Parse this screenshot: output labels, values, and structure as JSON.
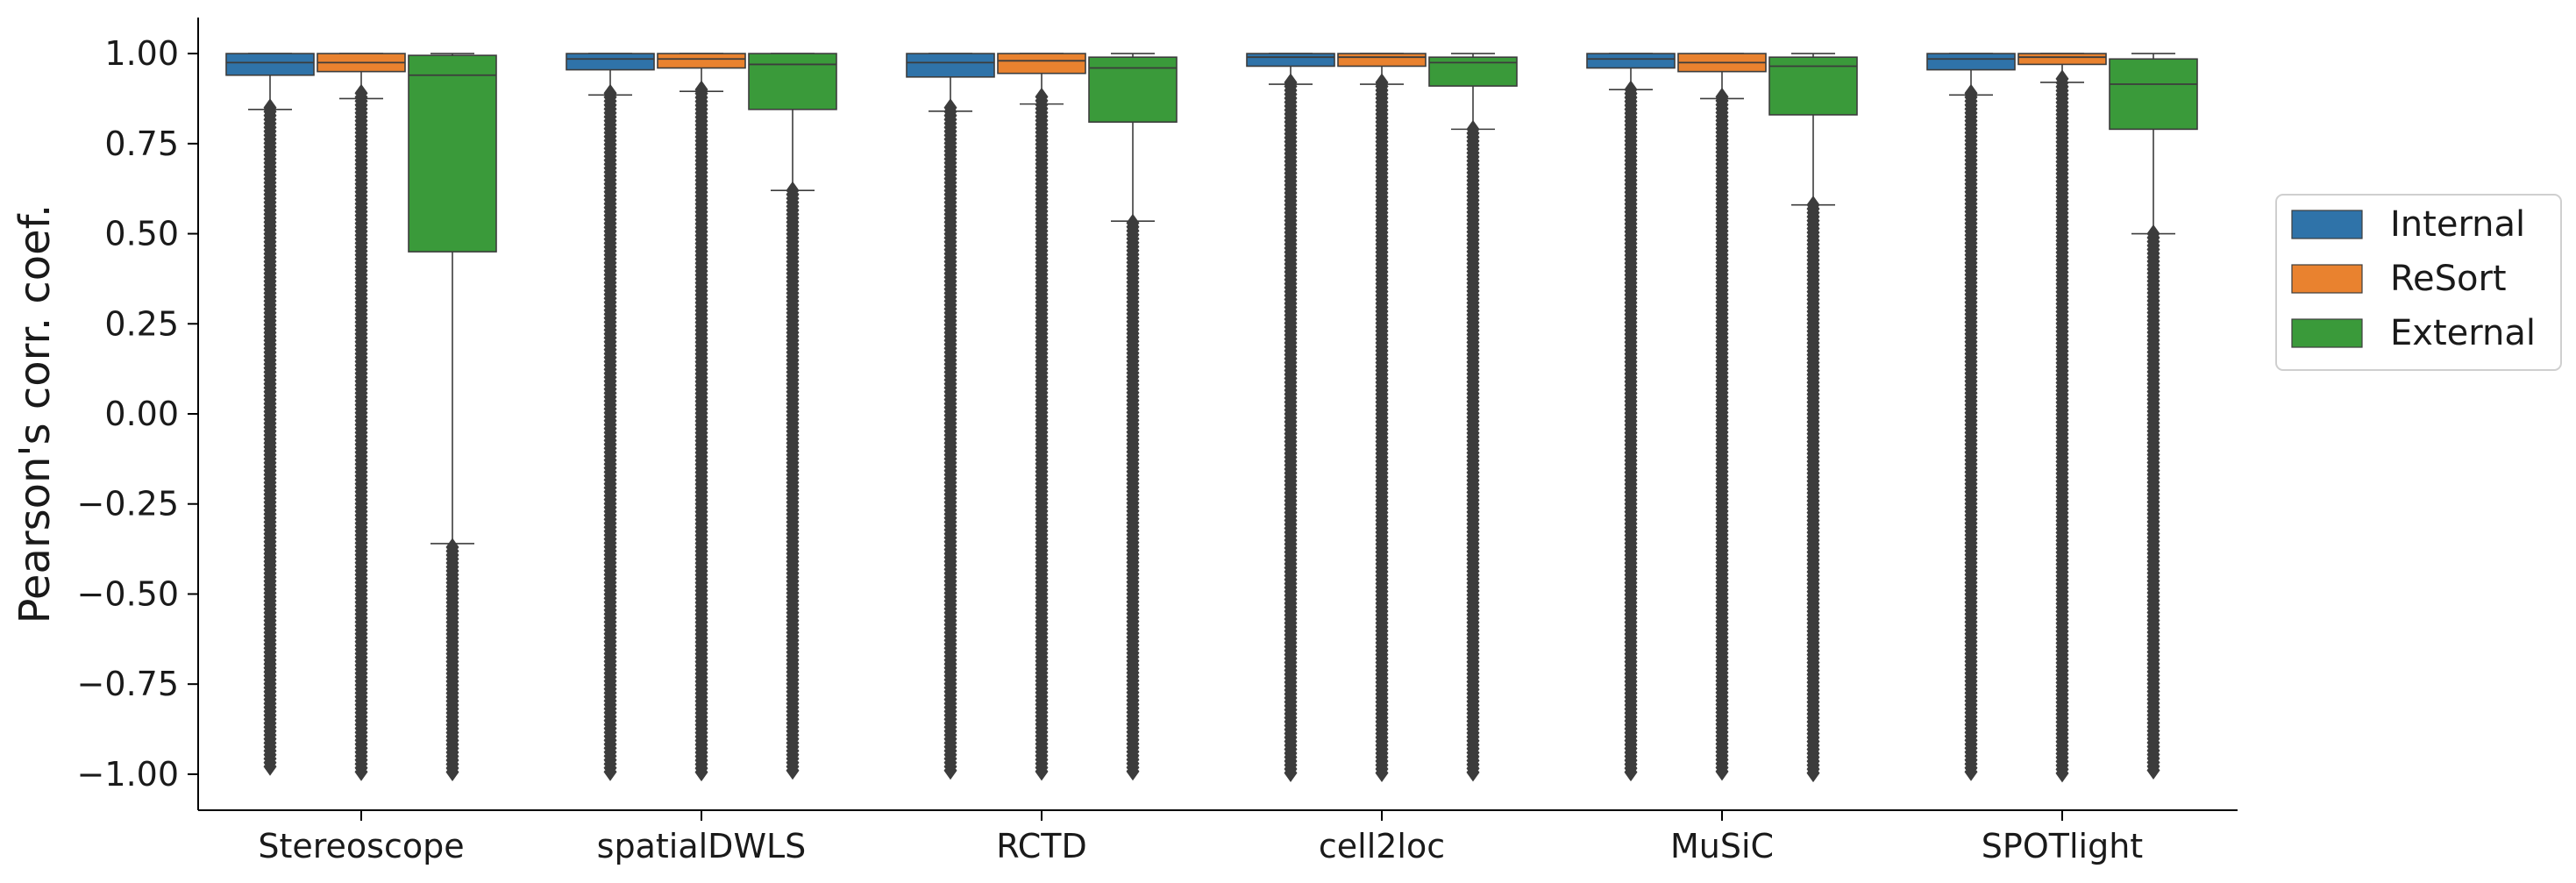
{
  "chart_data": {
    "type": "box",
    "ylabel": "Pearson's corr. coef.",
    "xlabel": "",
    "ylim": [
      -1.1,
      1.1
    ],
    "yticks": [
      1.0,
      0.75,
      0.5,
      0.25,
      0.0,
      -0.25,
      -0.5,
      -0.75,
      -1.0
    ],
    "ytick_labels": [
      "1.00",
      "0.75",
      "0.50",
      "0.25",
      "0.00",
      "−0.25",
      "−0.50",
      "−0.75",
      "−1.00"
    ],
    "categories": [
      "Stereoscope",
      "spatialDWLS",
      "RCTD",
      "cell2loc",
      "MuSiC",
      "SPOTlight"
    ],
    "legend_position": "right",
    "outlier_marker": "diamond",
    "series": [
      {
        "name": "Internal",
        "color": "#2f73a9",
        "boxes": [
          {
            "q1": 0.94,
            "median": 0.975,
            "q3": 1.0,
            "whisker_low": 0.845,
            "whisker_high": 1.0,
            "outliers_min": -0.98,
            "outliers_max": 0.85
          },
          {
            "q1": 0.955,
            "median": 0.985,
            "q3": 1.0,
            "whisker_low": 0.885,
            "whisker_high": 1.0,
            "outliers_min": -1.0,
            "outliers_max": 0.89
          },
          {
            "q1": 0.935,
            "median": 0.975,
            "q3": 1.0,
            "whisker_low": 0.84,
            "whisker_high": 1.0,
            "outliers_min": -1.0,
            "outliers_max": 0.85
          },
          {
            "q1": 0.965,
            "median": 0.99,
            "q3": 1.0,
            "whisker_low": 0.915,
            "whisker_high": 1.0,
            "outliers_min": -1.0,
            "outliers_max": 0.92
          },
          {
            "q1": 0.96,
            "median": 0.985,
            "q3": 1.0,
            "whisker_low": 0.9,
            "whisker_high": 1.0,
            "outliers_min": -1.0,
            "outliers_max": 0.9
          },
          {
            "q1": 0.955,
            "median": 0.985,
            "q3": 1.0,
            "whisker_low": 0.885,
            "whisker_high": 1.0,
            "outliers_min": -1.0,
            "outliers_max": 0.89
          }
        ]
      },
      {
        "name": "ReSort",
        "color": "#e9822f",
        "boxes": [
          {
            "q1": 0.95,
            "median": 0.975,
            "q3": 1.0,
            "whisker_low": 0.875,
            "whisker_high": 1.0,
            "outliers_min": -1.0,
            "outliers_max": 0.89
          },
          {
            "q1": 0.96,
            "median": 0.985,
            "q3": 1.0,
            "whisker_low": 0.895,
            "whisker_high": 1.0,
            "outliers_min": -1.0,
            "outliers_max": 0.9
          },
          {
            "q1": 0.945,
            "median": 0.98,
            "q3": 1.0,
            "whisker_low": 0.86,
            "whisker_high": 1.0,
            "outliers_min": -1.0,
            "outliers_max": 0.88
          },
          {
            "q1": 0.965,
            "median": 0.99,
            "q3": 1.0,
            "whisker_low": 0.915,
            "whisker_high": 1.0,
            "outliers_min": -1.0,
            "outliers_max": 0.92
          },
          {
            "q1": 0.95,
            "median": 0.975,
            "q3": 1.0,
            "whisker_low": 0.875,
            "whisker_high": 1.0,
            "outliers_min": -1.0,
            "outliers_max": 0.88
          },
          {
            "q1": 0.97,
            "median": 0.99,
            "q3": 1.0,
            "whisker_low": 0.92,
            "whisker_high": 1.0,
            "outliers_min": -1.0,
            "outliers_max": 0.93
          }
        ]
      },
      {
        "name": "External",
        "color": "#3a9a3a",
        "boxes": [
          {
            "q1": 0.45,
            "median": 0.94,
            "q3": 0.995,
            "whisker_low": -0.36,
            "whisker_high": 1.0,
            "outliers_min": -1.0,
            "outliers_max": -0.37
          },
          {
            "q1": 0.845,
            "median": 0.97,
            "q3": 1.0,
            "whisker_low": 0.62,
            "whisker_high": 1.0,
            "outliers_min": -1.0,
            "outliers_max": 0.62
          },
          {
            "q1": 0.81,
            "median": 0.96,
            "q3": 0.99,
            "whisker_low": 0.535,
            "whisker_high": 1.0,
            "outliers_min": -1.0,
            "outliers_max": 0.53
          },
          {
            "q1": 0.91,
            "median": 0.975,
            "q3": 0.99,
            "whisker_low": 0.79,
            "whisker_high": 1.0,
            "outliers_min": -1.0,
            "outliers_max": 0.79
          },
          {
            "q1": 0.83,
            "median": 0.965,
            "q3": 0.99,
            "whisker_low": 0.58,
            "whisker_high": 1.0,
            "outliers_min": -1.0,
            "outliers_max": 0.58
          },
          {
            "q1": 0.79,
            "median": 0.915,
            "q3": 0.985,
            "whisker_low": 0.5,
            "whisker_high": 1.0,
            "outliers_min": -1.0,
            "outliers_max": 0.5
          }
        ]
      }
    ]
  }
}
